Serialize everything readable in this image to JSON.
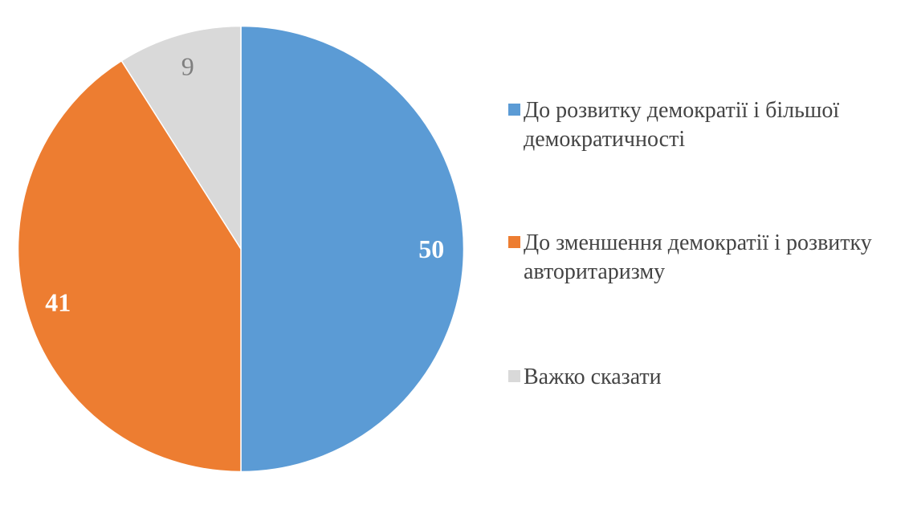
{
  "chart_data": {
    "type": "pie",
    "legend_position": "right",
    "direction": "clockwise",
    "start_angle_deg": 0,
    "values_unit": "percent",
    "background_color": "#FFFFFF",
    "legend_text_color": "#444444",
    "slices": [
      {
        "id": "development-of-democracy",
        "label": "До розвитку демократії і більшої демократичності",
        "value": 50,
        "color": "#5B9BD5",
        "value_label_color": "#FFFFFF",
        "value_label_weight": "bold"
      },
      {
        "id": "decline-of-democracy",
        "label": "До зменшення демократії і розвитку авторитаризму",
        "value": 41,
        "color": "#ED7D31",
        "value_label_color": "#FFFFFF",
        "value_label_weight": "bold"
      },
      {
        "id": "hard-to-say",
        "label": "Важко сказати",
        "value": 9,
        "color": "#D9D9D9",
        "value_label_color": "#7F7F7F",
        "value_label_weight": "normal"
      }
    ]
  }
}
